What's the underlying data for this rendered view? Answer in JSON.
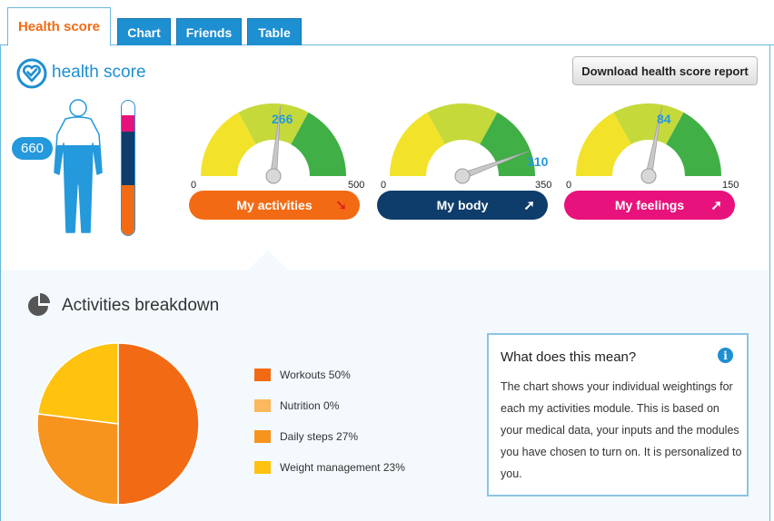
{
  "tabs": [
    {
      "label": "Health score",
      "active": true
    },
    {
      "label": "Chart",
      "active": false
    },
    {
      "label": "Friends",
      "active": false
    },
    {
      "label": "Table",
      "active": false
    }
  ],
  "header": {
    "title": "health score",
    "download_label": "Download health score report"
  },
  "score": {
    "value": "660",
    "thermometer": [
      {
        "color": "#e8127c",
        "fraction": 0.12
      },
      {
        "color": "#0f3d6b",
        "fraction": 0.4
      },
      {
        "color": "#f26b14",
        "fraction": 0.37
      }
    ]
  },
  "gauges": [
    {
      "label": "My activities",
      "value": "266",
      "min": "0",
      "max": "500",
      "button_color": "#f26b14",
      "arrow": "➘",
      "arrow_color": "#e0241b",
      "needle_fraction": 0.532
    },
    {
      "label": "My body",
      "value": "310",
      "min": "0",
      "max": "350",
      "button_color": "#0f3d6b",
      "arrow": "➚",
      "arrow_color": "#ffffff",
      "needle_fraction": 0.886
    },
    {
      "label": "My feelings",
      "value": "84",
      "min": "0",
      "max": "150",
      "button_color": "#e8127c",
      "arrow": "➚",
      "arrow_color": "#ffffff",
      "needle_fraction": 0.56
    }
  ],
  "gauge_colors": {
    "yellow": "#f2e32a",
    "lime": "#c5d93a",
    "green": "#3faf46"
  },
  "breakdown": {
    "title": "Activities breakdown",
    "legend": [
      {
        "label": "Workouts 50%",
        "color": "#f26b14"
      },
      {
        "label": "Nutrition 0%",
        "color": "#fcb85c"
      },
      {
        "label": "Daily steps 27%",
        "color": "#f7941d"
      },
      {
        "label": "Weight management 23%",
        "color": "#ffc20e"
      }
    ],
    "slices": [
      {
        "name": "Workouts",
        "value": 50,
        "color": "#f26b14"
      },
      {
        "name": "Nutrition",
        "value": 0,
        "color": "#fcb85c"
      },
      {
        "name": "Daily steps",
        "value": 27,
        "color": "#f7941d"
      },
      {
        "name": "Weight management",
        "value": 23,
        "color": "#ffc20e"
      }
    ]
  },
  "info": {
    "title": "What does this mean?",
    "text": "The chart shows your individual weightings for each my activities module. This is based on your medical data, your inputs and the modules you have chosen to turn on. It is personalized to you."
  }
}
